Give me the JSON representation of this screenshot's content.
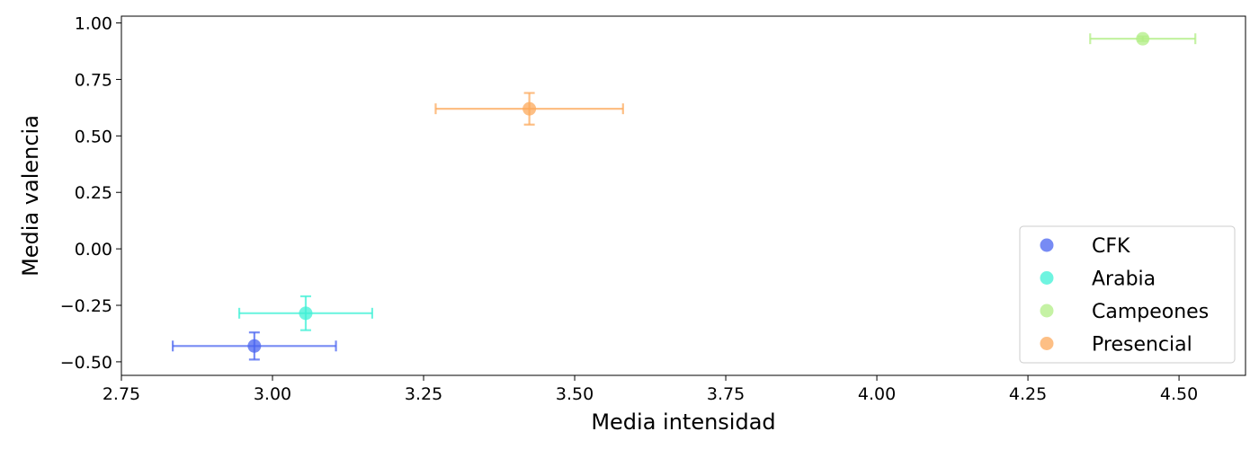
{
  "chart_data": {
    "type": "scatter",
    "title": "",
    "xlabel": "Media intensidad",
    "ylabel": "Media valencia",
    "xlim": [
      2.75,
      4.61
    ],
    "ylim": [
      -0.56,
      1.03
    ],
    "xticks": [
      2.75,
      3.0,
      3.25,
      3.5,
      3.75,
      4.0,
      4.25,
      4.5
    ],
    "xtick_labels": [
      "2.75",
      "3.00",
      "3.25",
      "3.50",
      "3.75",
      "4.00",
      "4.25",
      "4.50"
    ],
    "yticks": [
      -0.5,
      -0.25,
      0.0,
      0.25,
      0.5,
      0.75,
      1.0
    ],
    "ytick_labels": [
      "−0.50",
      "−0.25",
      "0.00",
      "0.25",
      "0.50",
      "0.75",
      "1.00"
    ],
    "grid": false,
    "legend_position": "bottom-right",
    "series": [
      {
        "name": "CFK",
        "color": "#4a64f0",
        "x": 2.97,
        "y": -0.43,
        "x_err": 0.135,
        "y_err": 0.06
      },
      {
        "name": "Arabia",
        "color": "#3ff0d6",
        "x": 3.055,
        "y": -0.285,
        "x_err": 0.11,
        "y_err": 0.075
      },
      {
        "name": "Campeones",
        "color": "#b2ee86",
        "x": 4.44,
        "y": 0.93,
        "x_err": 0.087,
        "y_err": 0.01
      },
      {
        "name": "Presencial",
        "color": "#fcaa5c",
        "x": 3.425,
        "y": 0.62,
        "x_err": 0.155,
        "y_err": 0.07
      }
    ]
  }
}
